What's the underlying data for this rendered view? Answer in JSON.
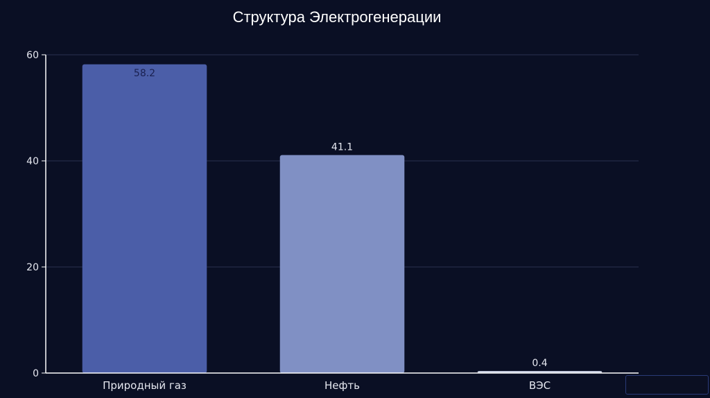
{
  "chart_data": {
    "type": "bar",
    "title": "Структура Электрогенерации",
    "categories": [
      "Природный газ",
      "Нефть",
      "ВЭС"
    ],
    "values": [
      58.2,
      41.1,
      0.4
    ],
    "data_labels": [
      "58.2",
      "41.1",
      "0.4"
    ],
    "bar_colors": [
      "#4b5ea8",
      "#8090c4",
      "#c4cade"
    ],
    "ylim": [
      0,
      60
    ],
    "yticks": [
      0,
      20,
      40,
      60
    ],
    "grid": true,
    "xlabel": "",
    "ylabel": ""
  },
  "colors": {
    "background": "#0a0f24",
    "grid": "#2a3050",
    "axis": "#ffffff",
    "text": "#e6e8f0"
  }
}
